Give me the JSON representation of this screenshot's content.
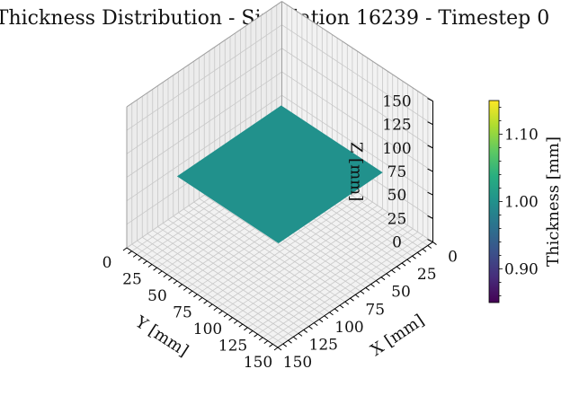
{
  "chart_data": {
    "type": "surface3d",
    "title": "Thickness Distribution - Simulation 16239 - Timestep 0",
    "xlabel": "X [mm]",
    "ylabel": "Y [mm]",
    "zlabel": "Z [mm]",
    "xlim": [
      0,
      150
    ],
    "ylim": [
      0,
      150
    ],
    "zlim": [
      0,
      150
    ],
    "x_ticks": [
      "0",
      "25",
      "50",
      "75",
      "100",
      "125",
      "150"
    ],
    "y_ticks": [
      "0",
      "25",
      "50",
      "75",
      "100",
      "125",
      "150"
    ],
    "z_ticks": [
      "0",
      "25",
      "50",
      "75",
      "100",
      "125",
      "150"
    ],
    "surface": {
      "x_range": [
        25,
        125
      ],
      "y_range": [
        25,
        125
      ],
      "z": 75,
      "thickness": 1.0,
      "color": "#21918c"
    },
    "colorbar": {
      "label": "Thickness [mm]",
      "min": 0.85,
      "max": 1.15,
      "ticks": [
        "0.90",
        "1.00",
        "1.10"
      ],
      "colormap": "viridis"
    },
    "grid": true
  }
}
